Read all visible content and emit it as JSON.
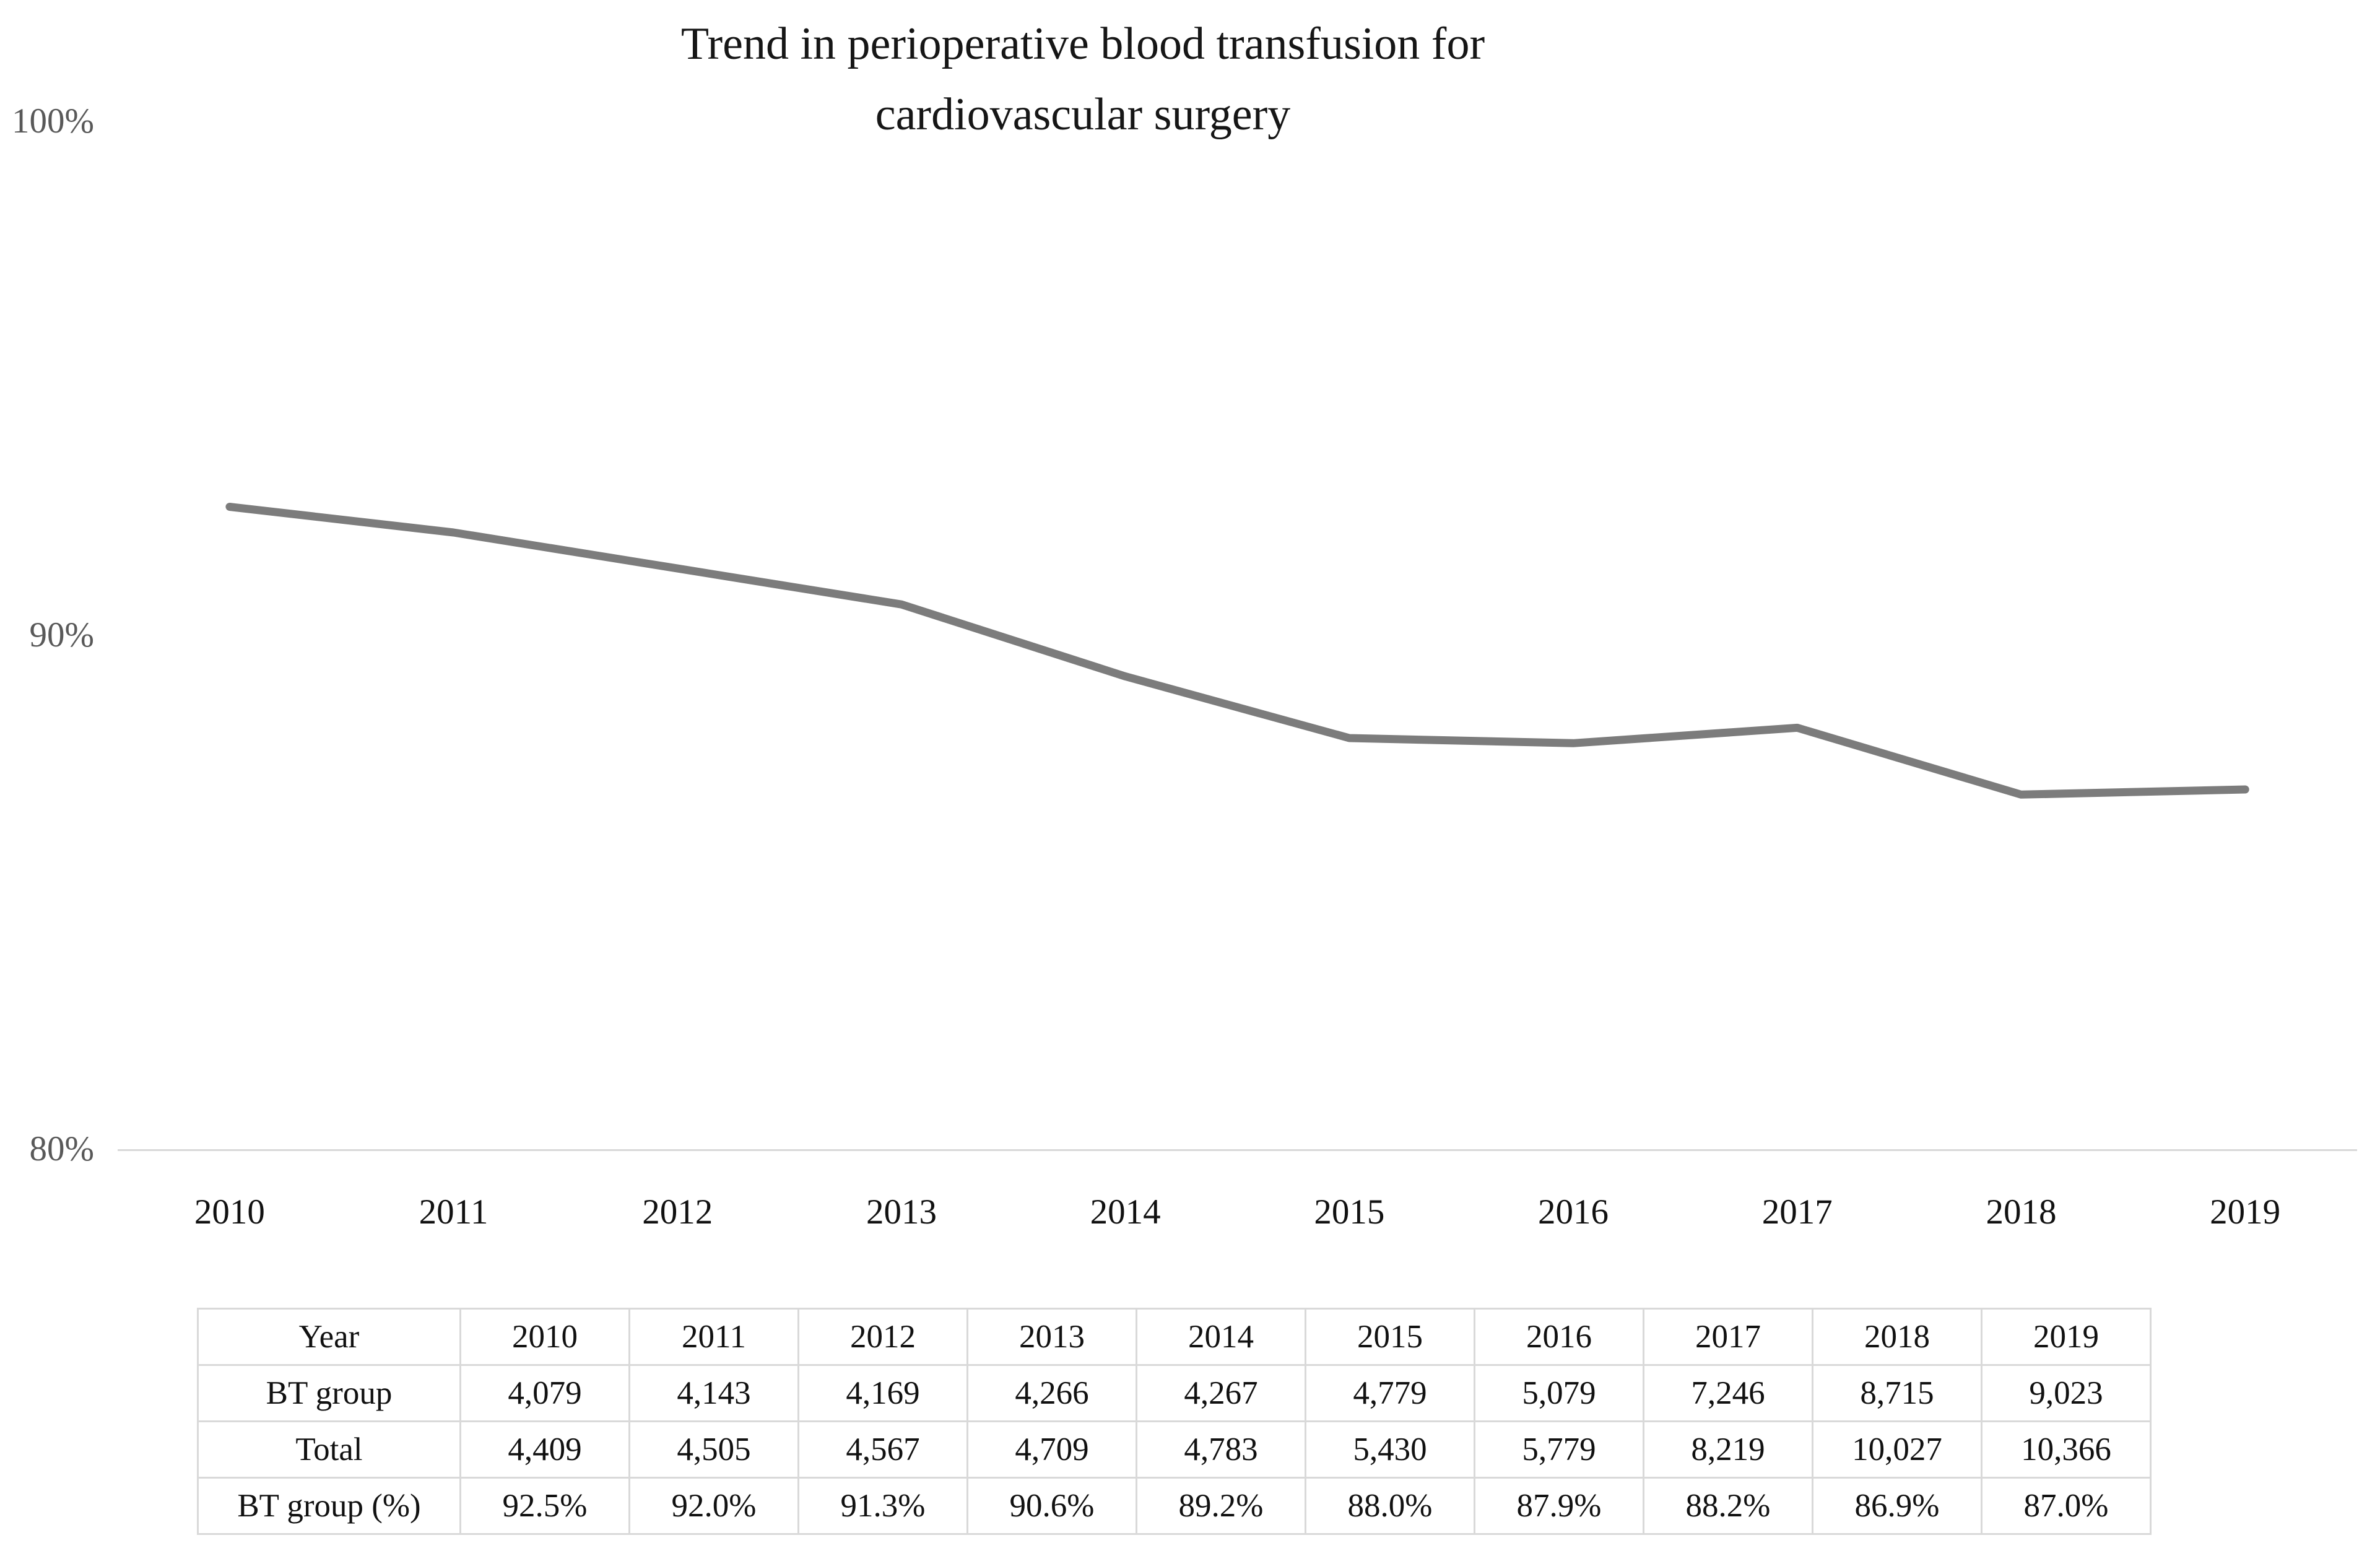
{
  "title": {
    "line1": "Trend in perioperative blood transfusion for",
    "line2": "cardiovascular surgery"
  },
  "colors": {
    "line": "#7c7c7c",
    "axis_tick_label": "#595959",
    "grid": "#d9d9d9",
    "text": "#111111"
  },
  "chart_data": {
    "type": "line",
    "title": "Trend in perioperative blood transfusion for cardiovascular surgery",
    "categories": [
      "2010",
      "2011",
      "2012",
      "2013",
      "2014",
      "2015",
      "2016",
      "2017",
      "2018",
      "2019"
    ],
    "series": [
      {
        "name": "BT group (%)",
        "values": [
          92.5,
          92.0,
          91.3,
          90.6,
          89.2,
          88.0,
          87.9,
          88.2,
          86.9,
          87.0
        ]
      }
    ],
    "xlabel": "",
    "ylabel": "",
    "ylim": [
      80,
      100
    ],
    "yticks": [
      {
        "label": "100%",
        "value": 100
      },
      {
        "label": "90%",
        "value": 90
      },
      {
        "label": "80%",
        "value": 80
      }
    ],
    "grid": "single horizontal axis line at 80% only",
    "legend_position": "none",
    "line_color": "#7c7c7c"
  },
  "table": {
    "header_row": [
      "Year",
      "2010",
      "2011",
      "2012",
      "2013",
      "2014",
      "2015",
      "2016",
      "2017",
      "2018",
      "2019"
    ],
    "rows": [
      [
        "BT group",
        "4,079",
        "4,143",
        "4,169",
        "4,266",
        "4,267",
        "4,779",
        "5,079",
        "7,246",
        "8,715",
        "9,023"
      ],
      [
        "Total",
        "4,409",
        "4,505",
        "4,567",
        "4,709",
        "4,783",
        "5,430",
        "5,779",
        "8,219",
        "10,027",
        "10,366"
      ],
      [
        "BT group (%)",
        "92.5%",
        "92.0%",
        "91.3%",
        "90.6%",
        "89.2%",
        "88.0%",
        "87.9%",
        "88.2%",
        "86.9%",
        "87.0%"
      ]
    ]
  }
}
